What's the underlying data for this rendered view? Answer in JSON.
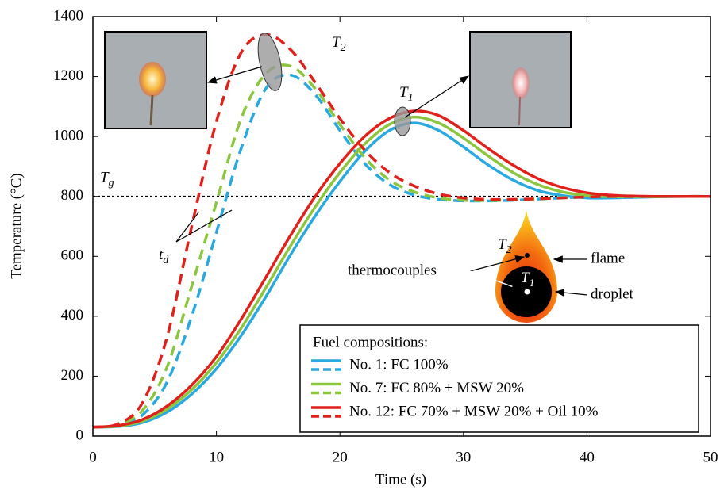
{
  "chart_data": {
    "type": "line",
    "x_label": "Time (s)",
    "y_label": "Temperature (°C)",
    "xlim": [
      0,
      50
    ],
    "xticks": [
      0,
      10,
      20,
      30,
      40,
      50
    ],
    "ylim": [
      0,
      1400
    ],
    "yticks": [
      0,
      200,
      400,
      600,
      800,
      1000,
      1200,
      1400
    ],
    "x": [
      0,
      2,
      4,
      6,
      8,
      10,
      12,
      14,
      16,
      18,
      20,
      22,
      24,
      26,
      28,
      30,
      32,
      34,
      36,
      38,
      40,
      42,
      44,
      46,
      48,
      50
    ],
    "series": [
      {
        "name": "No. 1: FC 100%",
        "color": "#29a9e0",
        "line_style": "solid",
        "values": [
          30,
          32,
          45,
          80,
          140,
          225,
          335,
          465,
          605,
          735,
          850,
          950,
          1020,
          1045,
          1020,
          965,
          905,
          855,
          820,
          803,
          795,
          795,
          797,
          799,
          800,
          800
        ]
      },
      {
        "name": "No. 1: FC 100%",
        "color": "#29a9e0",
        "line_style": "dashed",
        "values": [
          30,
          35,
          70,
          180,
          400,
          680,
          960,
          1160,
          1205,
          1140,
          1020,
          910,
          840,
          805,
          790,
          785,
          785,
          787,
          791,
          795,
          798,
          800,
          800,
          800,
          800,
          800
        ]
      },
      {
        "name": "No. 7: FC 80% + MSW 20%",
        "color": "#8cc63f",
        "line_style": "solid",
        "values": [
          30,
          33,
          50,
          90,
          155,
          245,
          360,
          495,
          635,
          765,
          880,
          975,
          1040,
          1065,
          1045,
          995,
          935,
          880,
          840,
          815,
          803,
          799,
          799,
          799,
          800,
          800
        ]
      },
      {
        "name": "No. 7: FC 80% + MSW 20%",
        "color": "#8cc63f",
        "line_style": "dashed",
        "values": [
          30,
          38,
          85,
          230,
          500,
          780,
          1060,
          1210,
          1235,
          1160,
          1040,
          930,
          855,
          815,
          795,
          787,
          786,
          788,
          792,
          796,
          799,
          800,
          800,
          800,
          800,
          800
        ]
      },
      {
        "name": "No. 12: FC 70% + MSW 20% + Oil 10%",
        "color": "#e0201b",
        "line_style": "solid",
        "values": [
          30,
          35,
          55,
          100,
          170,
          265,
          390,
          530,
          670,
          800,
          910,
          1000,
          1060,
          1085,
          1070,
          1020,
          960,
          905,
          860,
          830,
          812,
          804,
          801,
          800,
          800,
          800
        ]
      },
      {
        "name": "No. 12: FC 70% + MSW 20% + Oil 10%",
        "color": "#e0201b",
        "line_style": "dashed",
        "values": [
          30,
          40,
          110,
          330,
          700,
          1050,
          1280,
          1340,
          1290,
          1180,
          1060,
          955,
          880,
          835,
          808,
          795,
          790,
          790,
          792,
          795,
          798,
          800,
          800,
          800,
          800,
          800
        ]
      }
    ],
    "legend_title": "Fuel compositions:",
    "reference_line": {
      "value": 800,
      "symbol": "T",
      "subscript": "g"
    },
    "annotations": {
      "t2": {
        "symbol": "T",
        "subscript": "2"
      },
      "t1": {
        "symbol": "T",
        "subscript": "1"
      },
      "td": {
        "symbol": "t",
        "subscript": "d"
      },
      "thermocouples": "thermocouples",
      "flame": "flame",
      "droplet": "droplet",
      "drop_t2": {
        "symbol": "T",
        "subscript": "2"
      },
      "drop_t1": {
        "symbol": "T",
        "subscript": "1"
      }
    }
  }
}
